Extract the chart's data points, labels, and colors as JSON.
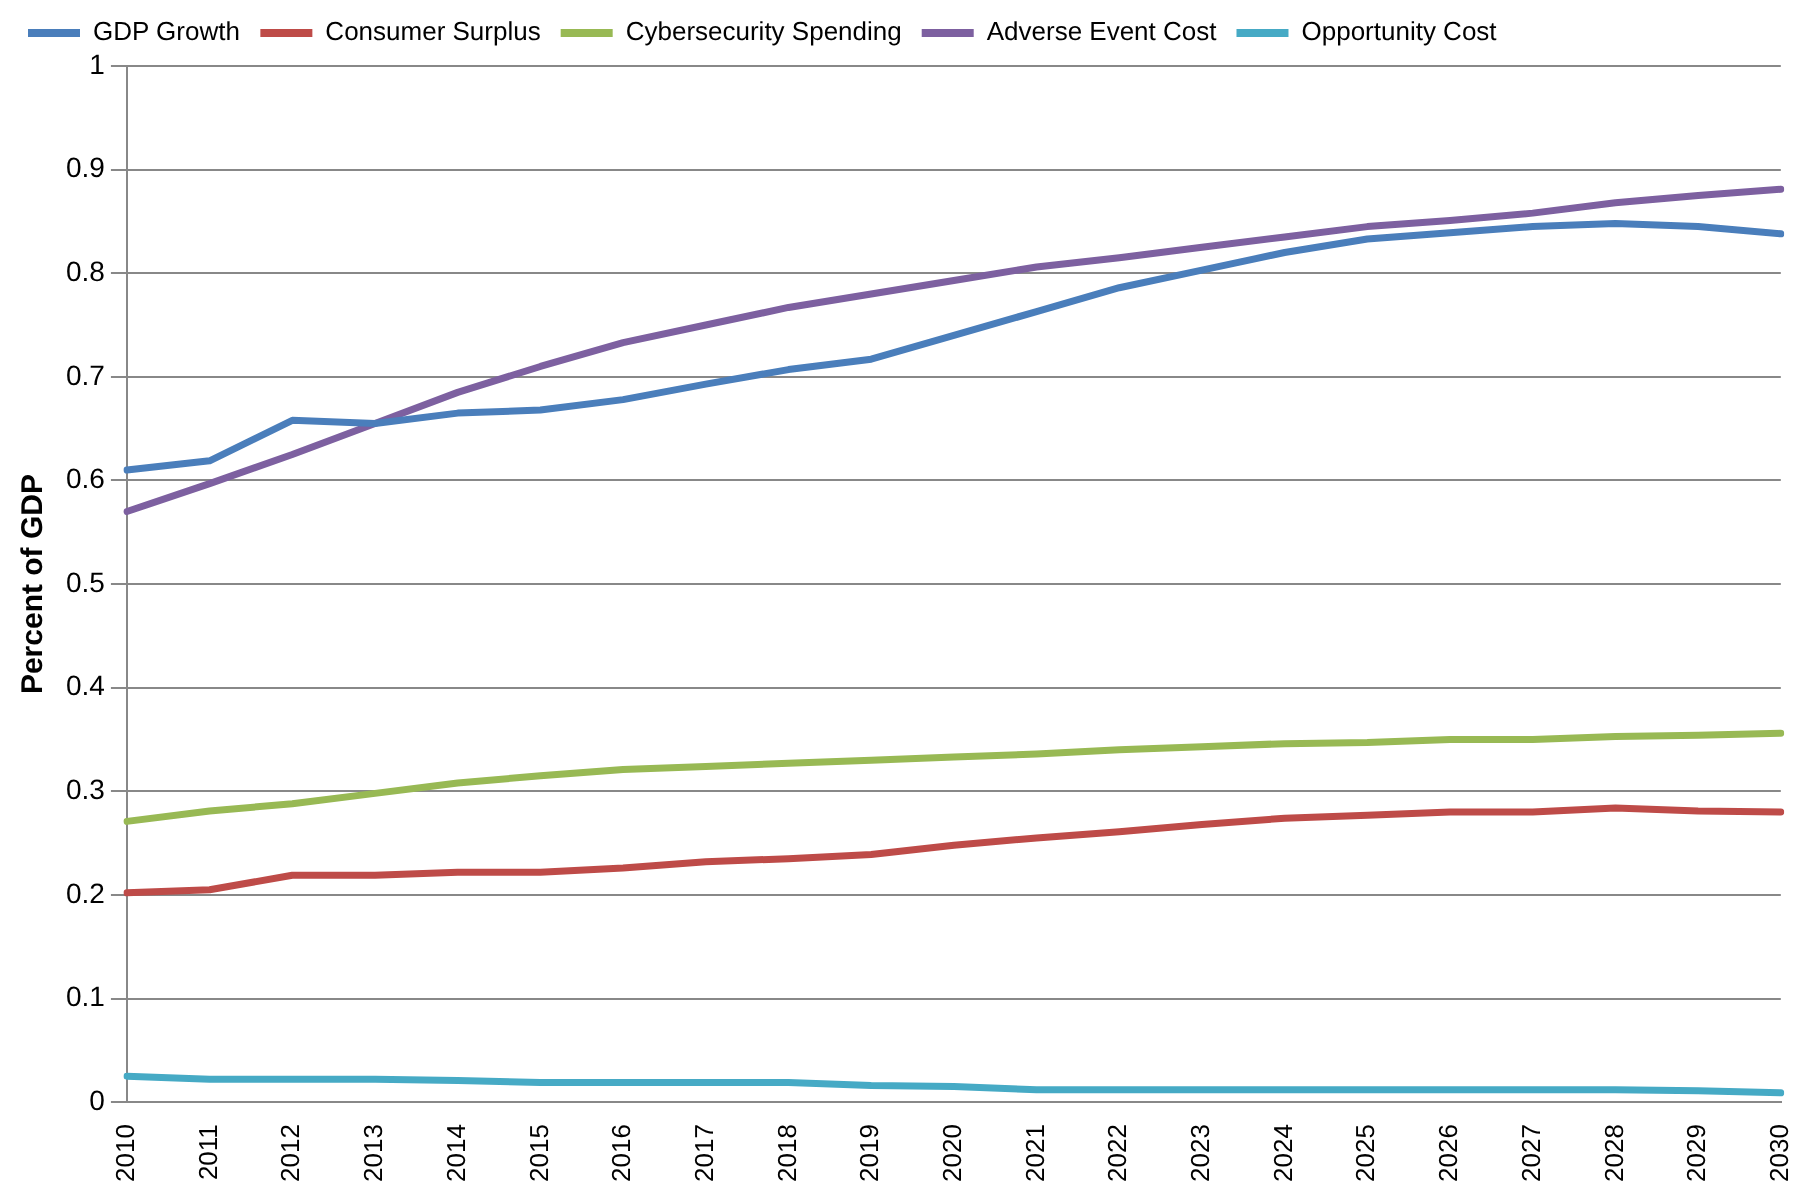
{
  "chart_data": {
    "type": "line",
    "ylabel": "Percent of GDP",
    "categories": [
      "2010",
      "2011",
      "2012",
      "2013",
      "2014",
      "2015",
      "2016",
      "2017",
      "2018",
      "2019",
      "2020",
      "2021",
      "2022",
      "2023",
      "2024",
      "2025",
      "2026",
      "2027",
      "2028",
      "2029",
      "2030"
    ],
    "series": [
      {
        "name": "GDP Growth",
        "color": "#4a7ebb",
        "values": [
          0.61,
          0.619,
          0.658,
          0.655,
          0.665,
          0.668,
          0.678,
          0.693,
          0.707,
          0.717,
          0.74,
          0.763,
          0.786,
          0.803,
          0.82,
          0.833,
          0.839,
          0.845,
          0.848,
          0.845,
          0.838
        ]
      },
      {
        "name": "Consumer Surplus",
        "color": "#be4b48",
        "values": [
          0.202,
          0.205,
          0.219,
          0.219,
          0.222,
          0.222,
          0.226,
          0.232,
          0.235,
          0.239,
          0.248,
          0.255,
          0.261,
          0.268,
          0.274,
          0.277,
          0.28,
          0.28,
          0.284,
          0.281,
          0.28
        ]
      },
      {
        "name": "Cybersecurity Spending",
        "color": "#98b954",
        "values": [
          0.271,
          0.281,
          0.288,
          0.298,
          0.308,
          0.315,
          0.321,
          0.324,
          0.327,
          0.33,
          0.333,
          0.336,
          0.34,
          0.343,
          0.346,
          0.347,
          0.35,
          0.35,
          0.353,
          0.354,
          0.356
        ]
      },
      {
        "name": "Adverse Event Cost",
        "color": "#7d60a0",
        "values": [
          0.57,
          0.597,
          0.625,
          0.655,
          0.685,
          0.71,
          0.733,
          0.75,
          0.767,
          0.78,
          0.793,
          0.806,
          0.815,
          0.825,
          0.835,
          0.845,
          0.851,
          0.858,
          0.868,
          0.875,
          0.881
        ]
      },
      {
        "name": "Opportunity Cost",
        "color": "#46aac5",
        "values": [
          0.025,
          0.022,
          0.022,
          0.022,
          0.021,
          0.019,
          0.019,
          0.019,
          0.019,
          0.016,
          0.015,
          0.012,
          0.012,
          0.012,
          0.012,
          0.012,
          0.012,
          0.012,
          0.012,
          0.011,
          0.009
        ]
      }
    ],
    "ylim": [
      0,
      1
    ],
    "yticks": [
      0,
      0.1,
      0.2,
      0.3,
      0.4,
      0.5,
      0.6,
      0.7,
      0.8,
      0.9,
      1
    ],
    "grid": "y",
    "legend": "top left",
    "marker": "none",
    "line_style": "solid"
  }
}
